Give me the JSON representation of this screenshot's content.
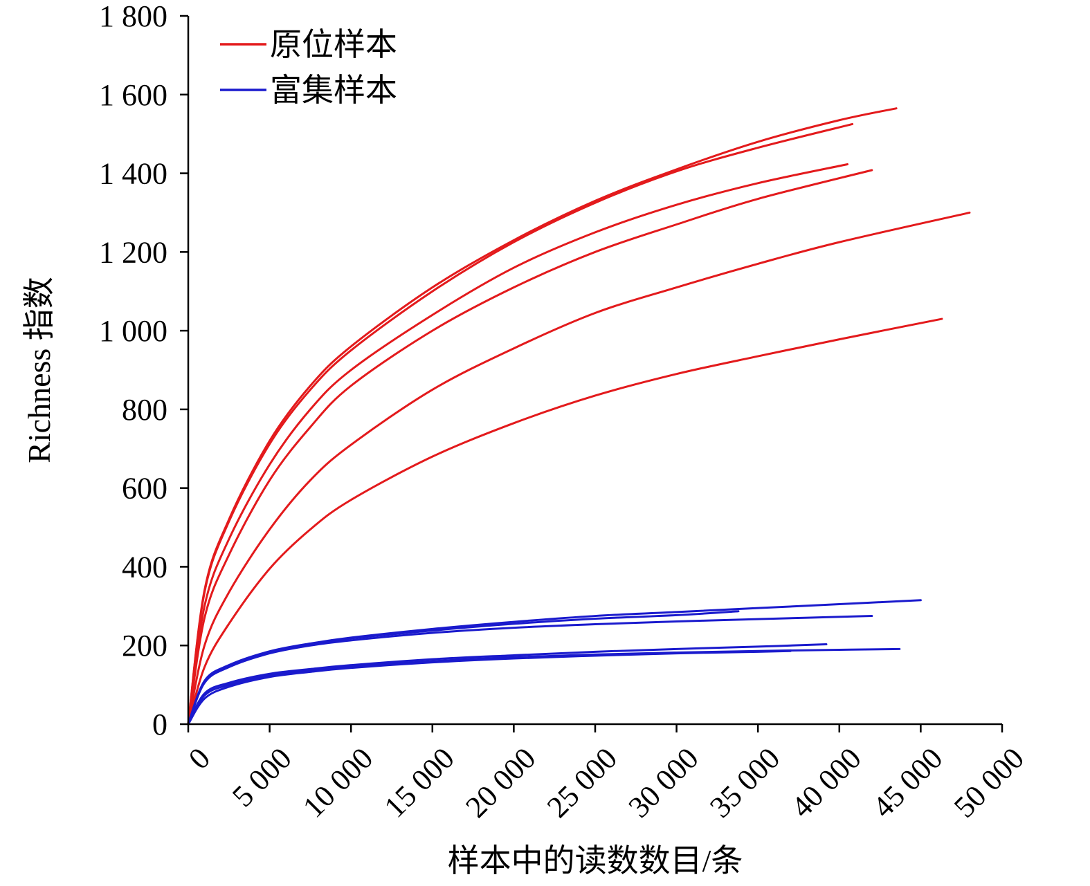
{
  "chart_data": {
    "type": "line",
    "title": "",
    "xlabel": "样本中的读数数目/条",
    "ylabel": "Richness 指数",
    "xlim": [
      0,
      50000
    ],
    "ylim": [
      0,
      1800
    ],
    "x_ticks": [
      0,
      5000,
      10000,
      15000,
      20000,
      25000,
      30000,
      35000,
      40000,
      45000,
      50000
    ],
    "x_tick_labels": [
      "0",
      "5 000",
      "10 000",
      "15 000",
      "20 000",
      "25 000",
      "30 000",
      "35 000",
      "40 000",
      "45 000",
      "50 000"
    ],
    "y_ticks": [
      0,
      200,
      400,
      600,
      800,
      1000,
      1200,
      1400,
      1600,
      1800
    ],
    "y_tick_labels": [
      "0",
      "200",
      "400",
      "600",
      "800",
      "1 000",
      "1 200",
      "1 400",
      "1 600",
      "1 800"
    ],
    "grid": false,
    "legend": {
      "position": "top-left",
      "entries": [
        {
          "label": "原位样本",
          "color": "#e31a1c"
        },
        {
          "label": "富集样本",
          "color": "#1a1acd"
        }
      ]
    },
    "series": [
      {
        "group": "原位样本",
        "color": "#e31a1c",
        "points": [
          [
            0,
            0
          ],
          [
            1000,
            340
          ],
          [
            2500,
            520
          ],
          [
            5000,
            720
          ],
          [
            7500,
            860
          ],
          [
            10000,
            960
          ],
          [
            15000,
            1110
          ],
          [
            20000,
            1230
          ],
          [
            25000,
            1330
          ],
          [
            30000,
            1410
          ],
          [
            35000,
            1480
          ],
          [
            40000,
            1535
          ],
          [
            43500,
            1565
          ]
        ]
      },
      {
        "group": "原位样本",
        "color": "#e31a1c",
        "points": [
          [
            0,
            0
          ],
          [
            1000,
            335
          ],
          [
            2500,
            515
          ],
          [
            5000,
            712
          ],
          [
            7500,
            850
          ],
          [
            10000,
            950
          ],
          [
            15000,
            1100
          ],
          [
            20000,
            1225
          ],
          [
            25000,
            1325
          ],
          [
            30000,
            1405
          ],
          [
            35000,
            1465
          ],
          [
            40800,
            1525
          ]
        ]
      },
      {
        "group": "原位样本",
        "color": "#e31a1c",
        "points": [
          [
            0,
            0
          ],
          [
            1000,
            300
          ],
          [
            2500,
            470
          ],
          [
            5000,
            660
          ],
          [
            7500,
            800
          ],
          [
            10000,
            900
          ],
          [
            15000,
            1040
          ],
          [
            20000,
            1160
          ],
          [
            25000,
            1250
          ],
          [
            30000,
            1320
          ],
          [
            35000,
            1375
          ],
          [
            40500,
            1423
          ]
        ]
      },
      {
        "group": "原位样本",
        "color": "#e31a1c",
        "points": [
          [
            0,
            0
          ],
          [
            1000,
            270
          ],
          [
            2500,
            430
          ],
          [
            5000,
            620
          ],
          [
            7500,
            755
          ],
          [
            10000,
            860
          ],
          [
            15000,
            1000
          ],
          [
            20000,
            1110
          ],
          [
            25000,
            1200
          ],
          [
            30000,
            1270
          ],
          [
            35000,
            1335
          ],
          [
            42000,
            1408
          ]
        ]
      },
      {
        "group": "原位样本",
        "color": "#e31a1c",
        "points": [
          [
            0,
            0
          ],
          [
            1000,
            200
          ],
          [
            2500,
            335
          ],
          [
            5000,
            495
          ],
          [
            7500,
            620
          ],
          [
            10000,
            710
          ],
          [
            15000,
            850
          ],
          [
            20000,
            955
          ],
          [
            25000,
            1045
          ],
          [
            30000,
            1110
          ],
          [
            35000,
            1170
          ],
          [
            40000,
            1225
          ],
          [
            48000,
            1300
          ]
        ]
      },
      {
        "group": "原位样本",
        "color": "#e31a1c",
        "points": [
          [
            0,
            0
          ],
          [
            1000,
            145
          ],
          [
            2500,
            255
          ],
          [
            5000,
            395
          ],
          [
            7500,
            495
          ],
          [
            10000,
            570
          ],
          [
            15000,
            680
          ],
          [
            20000,
            765
          ],
          [
            25000,
            835
          ],
          [
            30000,
            890
          ],
          [
            35000,
            935
          ],
          [
            40000,
            978
          ],
          [
            46300,
            1030
          ]
        ]
      },
      {
        "group": "富集样本",
        "color": "#1a1acd",
        "points": [
          [
            0,
            0
          ],
          [
            1000,
            110
          ],
          [
            2500,
            150
          ],
          [
            5000,
            185
          ],
          [
            7500,
            205
          ],
          [
            10000,
            220
          ],
          [
            15000,
            242
          ],
          [
            20000,
            260
          ],
          [
            25000,
            275
          ],
          [
            30000,
            285
          ],
          [
            35000,
            295
          ],
          [
            40000,
            305
          ],
          [
            45000,
            315
          ]
        ]
      },
      {
        "group": "富集样本",
        "color": "#1a1acd",
        "points": [
          [
            0,
            0
          ],
          [
            1000,
            108
          ],
          [
            2500,
            148
          ],
          [
            5000,
            183
          ],
          [
            7500,
            203
          ],
          [
            10000,
            218
          ],
          [
            15000,
            238
          ],
          [
            20000,
            255
          ],
          [
            25000,
            268
          ],
          [
            30000,
            277
          ],
          [
            33800,
            287
          ]
        ]
      },
      {
        "group": "富集样本",
        "color": "#1a1acd",
        "points": [
          [
            0,
            0
          ],
          [
            1000,
            105
          ],
          [
            2500,
            145
          ],
          [
            5000,
            180
          ],
          [
            7500,
            200
          ],
          [
            10000,
            213
          ],
          [
            15000,
            232
          ],
          [
            20000,
            245
          ],
          [
            25000,
            254
          ],
          [
            30000,
            261
          ],
          [
            35000,
            267
          ],
          [
            42000,
            275
          ]
        ]
      },
      {
        "group": "富集样本",
        "color": "#1a1acd",
        "points": [
          [
            0,
            0
          ],
          [
            1000,
            78
          ],
          [
            2500,
            105
          ],
          [
            5000,
            128
          ],
          [
            7500,
            140
          ],
          [
            10000,
            150
          ],
          [
            15000,
            165
          ],
          [
            20000,
            175
          ],
          [
            25000,
            184
          ],
          [
            30000,
            191
          ],
          [
            35000,
            197
          ],
          [
            39200,
            203
          ]
        ]
      },
      {
        "group": "富集样本",
        "color": "#1a1acd",
        "points": [
          [
            0,
            0
          ],
          [
            1000,
            73
          ],
          [
            2500,
            100
          ],
          [
            5000,
            124
          ],
          [
            7500,
            136
          ],
          [
            10000,
            146
          ],
          [
            15000,
            160
          ],
          [
            20000,
            170
          ],
          [
            25000,
            177
          ],
          [
            30000,
            182
          ],
          [
            35000,
            186
          ],
          [
            40000,
            189
          ],
          [
            43700,
            191
          ]
        ]
      },
      {
        "group": "富集样本",
        "color": "#1a1acd",
        "points": [
          [
            0,
            0
          ],
          [
            1000,
            65
          ],
          [
            2500,
            95
          ],
          [
            5000,
            120
          ],
          [
            7500,
            133
          ],
          [
            10000,
            143
          ],
          [
            15000,
            157
          ],
          [
            20000,
            167
          ],
          [
            25000,
            174
          ],
          [
            30000,
            180
          ],
          [
            35000,
            184
          ],
          [
            37000,
            186
          ]
        ]
      }
    ]
  }
}
